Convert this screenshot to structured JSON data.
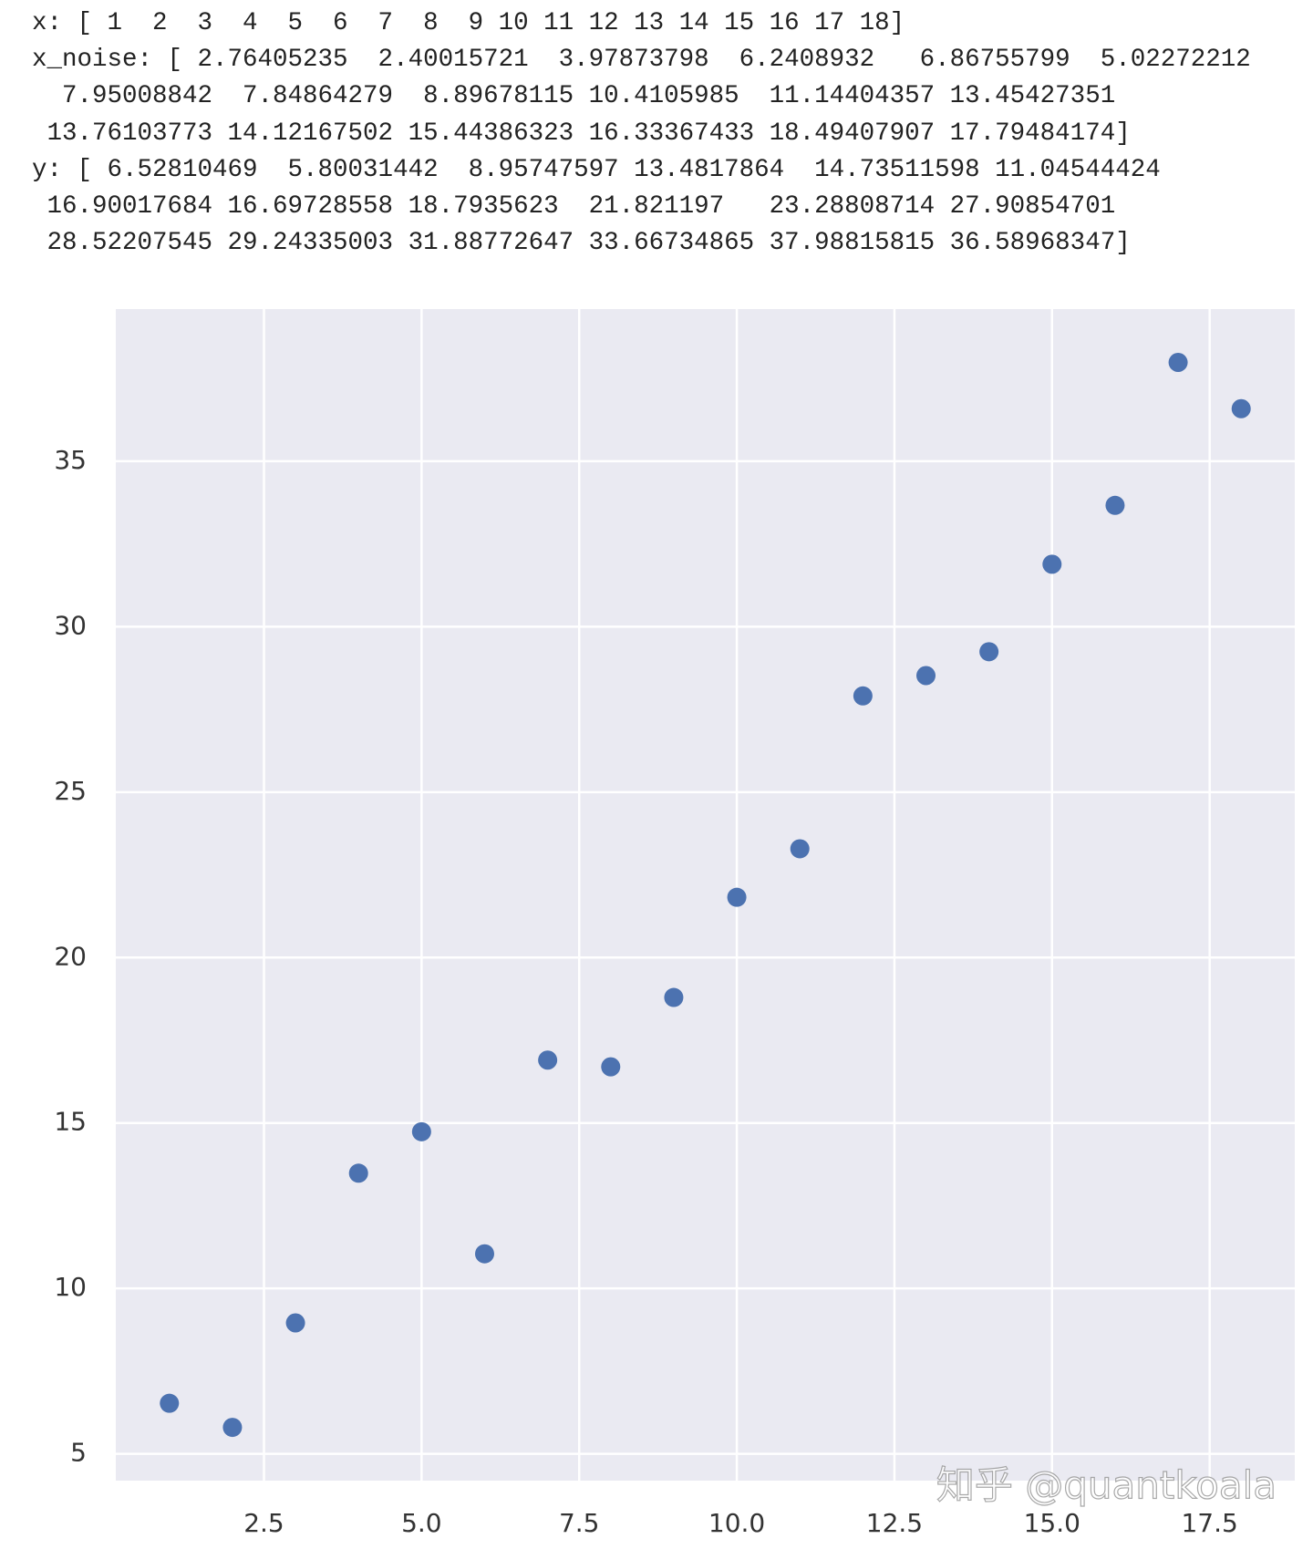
{
  "output_lines": [
    "x: [ 1  2  3  4  5  6  7  8  9 10 11 12 13 14 15 16 17 18]",
    "x_noise: [ 2.76405235  2.40015721  3.97873798  6.2408932   6.86755799  5.02272212",
    "  7.95008842  7.84864279  8.89678115 10.4105985  11.14404357 13.45427351",
    " 13.76103773 14.12167502 15.44386323 16.33367433 18.49407907 17.79484174]",
    "y: [ 6.52810469  5.80031442  8.95747597 13.4817864  14.73511598 11.04544424",
    " 16.90017684 16.69728558 18.7935623  21.821197   23.28808714 27.90854701",
    " 28.52207545 29.24335003 31.88772647 33.66734865 37.98815815 36.58968347]"
  ],
  "chart_data": {
    "type": "scatter",
    "x": [
      1,
      2,
      3,
      4,
      5,
      6,
      7,
      8,
      9,
      10,
      11,
      12,
      13,
      14,
      15,
      16,
      17,
      18
    ],
    "values": [
      6.52810469,
      5.80031442,
      8.95747597,
      13.4817864,
      14.73511598,
      11.04544424,
      16.90017684,
      16.69728558,
      18.7935623,
      21.821197,
      23.28808714,
      27.90854701,
      28.52207545,
      29.24335003,
      31.88772647,
      33.66734865,
      37.98815815,
      36.58968347
    ],
    "color": "#4c72b0",
    "xlim": [
      0.15,
      18.85
    ],
    "ylim": [
      4.19,
      39.6
    ],
    "xticks": [
      2.5,
      {
        "value": 5,
        "label": "5.0"
      },
      7.5,
      {
        "value": 10,
        "label": "10.0"
      },
      12.5,
      {
        "value": 15,
        "label": "15.0"
      },
      17.5
    ],
    "yticks": [
      5,
      10,
      15,
      20,
      25,
      30,
      35
    ],
    "grid": true
  },
  "watermark": "知乎 @quantkoala"
}
